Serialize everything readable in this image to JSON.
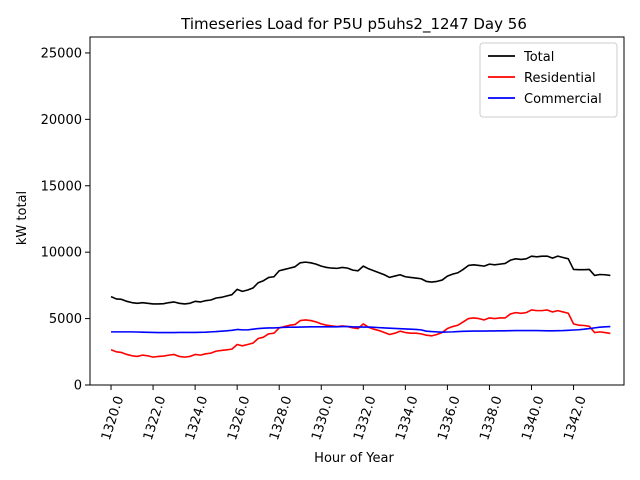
{
  "chart_data": {
    "type": "line",
    "title": "Timeseries Load for P5U p5uhs2_1247  Day 56",
    "xlabel": "Hour of Year",
    "ylabel": "kW total",
    "xlim": [
      1319.0,
      1344.4
    ],
    "ylim": [
      0,
      26200
    ],
    "xticks": [
      1320,
      1322,
      1324,
      1326,
      1328,
      1330,
      1332,
      1334,
      1336,
      1338,
      1340,
      1342
    ],
    "xtick_labels": [
      "1320.0",
      "1322.0",
      "1324.0",
      "1326.0",
      "1328.0",
      "1330.0",
      "1332.0",
      "1334.0",
      "1336.0",
      "1338.0",
      "1340.0",
      "1342.0"
    ],
    "yticks": [
      0,
      5000,
      10000,
      15000,
      20000,
      25000
    ],
    "ytick_labels": [
      "0",
      "5000",
      "10000",
      "15000",
      "20000",
      "25000"
    ],
    "grid": false,
    "legend_position": "top-right",
    "x": [
      1320.0,
      1320.25,
      1320.5,
      1320.75,
      1321.0,
      1321.25,
      1321.5,
      1321.75,
      1322.0,
      1322.25,
      1322.5,
      1322.75,
      1323.0,
      1323.25,
      1323.5,
      1323.75,
      1324.0,
      1324.25,
      1324.5,
      1324.75,
      1325.0,
      1325.25,
      1325.5,
      1325.75,
      1326.0,
      1326.25,
      1326.5,
      1326.75,
      1327.0,
      1327.25,
      1327.5,
      1327.75,
      1328.0,
      1328.25,
      1328.5,
      1328.75,
      1329.0,
      1329.25,
      1329.5,
      1329.75,
      1330.0,
      1330.25,
      1330.5,
      1330.75,
      1331.0,
      1331.25,
      1331.5,
      1331.75,
      1332.0,
      1332.25,
      1332.5,
      1332.75,
      1333.0,
      1333.25,
      1333.5,
      1333.75,
      1334.0,
      1334.25,
      1334.5,
      1334.75,
      1335.0,
      1335.25,
      1335.5,
      1335.75,
      1336.0,
      1336.25,
      1336.5,
      1336.75,
      1337.0,
      1337.25,
      1337.5,
      1337.75,
      1338.0,
      1338.25,
      1338.5,
      1338.75,
      1339.0,
      1339.25,
      1339.5,
      1339.75,
      1340.0,
      1340.25,
      1340.5,
      1340.75,
      1341.0,
      1341.25,
      1341.5,
      1341.75,
      1342.0,
      1342.25,
      1342.5,
      1342.75,
      1343.0,
      1343.25,
      1343.5,
      1343.75
    ],
    "series": [
      {
        "name": "Total",
        "color": "#000000",
        "values": [
          6650,
          6480,
          6450,
          6300,
          6200,
          6150,
          6200,
          6150,
          6100,
          6100,
          6120,
          6200,
          6250,
          6150,
          6100,
          6150,
          6300,
          6250,
          6350,
          6400,
          6550,
          6600,
          6700,
          6800,
          7200,
          7050,
          7150,
          7300,
          7700,
          7850,
          8100,
          8150,
          8600,
          8700,
          8800,
          8900,
          9200,
          9250,
          9200,
          9100,
          8950,
          8850,
          8800,
          8780,
          8850,
          8800,
          8650,
          8600,
          8950,
          8750,
          8600,
          8450,
          8300,
          8100,
          8200,
          8300,
          8150,
          8100,
          8050,
          8000,
          7800,
          7750,
          7800,
          7900,
          8200,
          8350,
          8450,
          8700,
          9000,
          9050,
          9000,
          8950,
          9100,
          9050,
          9100,
          9150,
          9400,
          9500,
          9450,
          9500,
          9700,
          9650,
          9700,
          9700,
          9550,
          9700,
          9600,
          9500,
          8700,
          8680,
          8680,
          8700,
          8250,
          8320,
          8300,
          8250
        ]
      },
      {
        "name": "Residential",
        "color": "#ff0000",
        "values": [
          2650,
          2500,
          2450,
          2300,
          2200,
          2150,
          2250,
          2200,
          2100,
          2150,
          2180,
          2250,
          2300,
          2150,
          2100,
          2150,
          2300,
          2250,
          2350,
          2400,
          2550,
          2600,
          2650,
          2700,
          3050,
          2950,
          3050,
          3150,
          3500,
          3600,
          3850,
          3900,
          4300,
          4400,
          4500,
          4550,
          4850,
          4900,
          4850,
          4750,
          4600,
          4500,
          4450,
          4400,
          4450,
          4400,
          4300,
          4250,
          4600,
          4350,
          4200,
          4100,
          3950,
          3800,
          3900,
          4050,
          3950,
          3900,
          3900,
          3850,
          3750,
          3700,
          3800,
          3950,
          4250,
          4400,
          4500,
          4750,
          5000,
          5050,
          5000,
          4900,
          5050,
          5000,
          5050,
          5050,
          5350,
          5450,
          5400,
          5450,
          5650,
          5600,
          5600,
          5650,
          5500,
          5600,
          5500,
          5400,
          4600,
          4500,
          4480,
          4420,
          3950,
          4000,
          3950,
          3880
        ]
      },
      {
        "name": "Commercial",
        "color": "#0000ff",
        "values": [
          4000,
          4000,
          4000,
          4000,
          4000,
          3990,
          3980,
          3970,
          3960,
          3950,
          3950,
          3950,
          3950,
          3960,
          3960,
          3960,
          3960,
          3970,
          3980,
          4000,
          4020,
          4050,
          4080,
          4120,
          4180,
          4150,
          4150,
          4200,
          4250,
          4280,
          4300,
          4300,
          4320,
          4340,
          4350,
          4350,
          4360,
          4370,
          4380,
          4380,
          4380,
          4380,
          4380,
          4380,
          4400,
          4400,
          4380,
          4370,
          4360,
          4360,
          4340,
          4320,
          4300,
          4280,
          4260,
          4240,
          4220,
          4200,
          4180,
          4150,
          4050,
          4020,
          4000,
          3980,
          3990,
          4000,
          4020,
          4040,
          4050,
          4060,
          4060,
          4060,
          4070,
          4070,
          4080,
          4080,
          4090,
          4100,
          4100,
          4100,
          4100,
          4100,
          4090,
          4080,
          4080,
          4090,
          4100,
          4120,
          4140,
          4160,
          4200,
          4250,
          4300,
          4350,
          4380,
          4400
        ]
      }
    ]
  }
}
